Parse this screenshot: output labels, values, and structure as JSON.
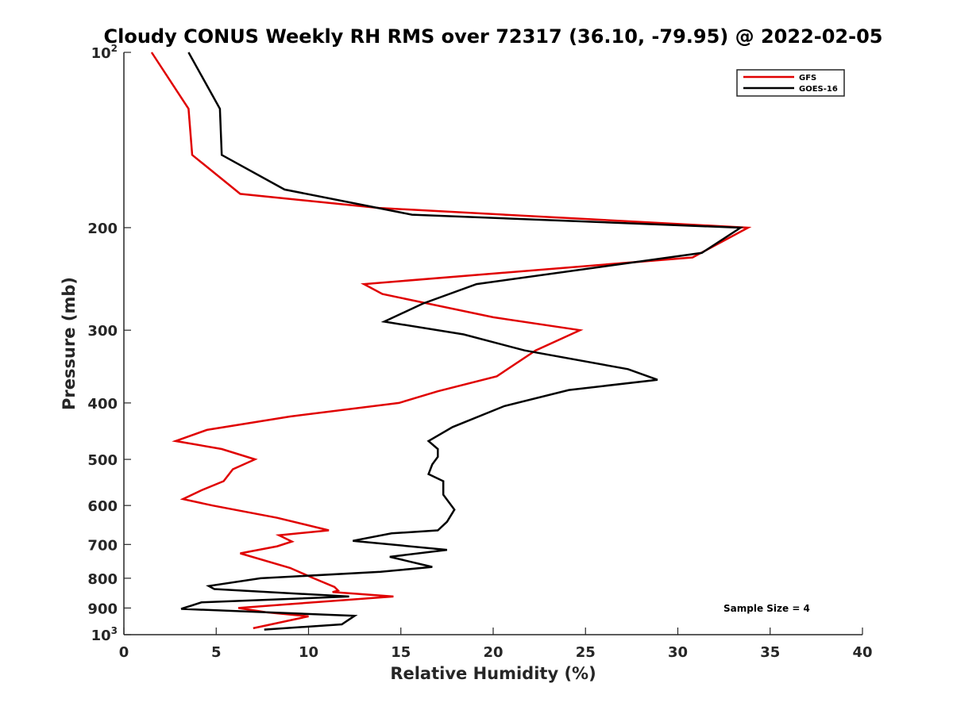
{
  "chart_data": {
    "type": "line",
    "title": "Cloudy CONUS Weekly RH RMS over 72317 (36.10, -79.95) @ 2022-02-05",
    "xlabel": "Relative Humidity (%)",
    "ylabel": "Pressure (mb)",
    "xlim": [
      0,
      40
    ],
    "ylim": [
      100,
      1000
    ],
    "yscale": "log",
    "yreversed": true,
    "grid": false,
    "legend_position": "top-right",
    "x_ticks": [
      "0",
      "5",
      "10",
      "15",
      "20",
      "25",
      "30",
      "35",
      "40"
    ],
    "y_ticks": [
      {
        "value": 100,
        "base": "10",
        "exp": "2"
      },
      {
        "value": 200,
        "label": "200"
      },
      {
        "value": 300,
        "label": "300"
      },
      {
        "value": 400,
        "label": "400"
      },
      {
        "value": 500,
        "label": "500"
      },
      {
        "value": 600,
        "label": "600"
      },
      {
        "value": 700,
        "label": "700"
      },
      {
        "value": 800,
        "label": "800"
      },
      {
        "value": 900,
        "label": "900"
      },
      {
        "value": 1000,
        "base": "10",
        "exp": "3"
      }
    ],
    "annotation": "Sample Size = 4",
    "series": [
      {
        "name": "GFS",
        "color": "#e00000",
        "points": [
          [
            1.5,
            100
          ],
          [
            3.5,
            125
          ],
          [
            3.7,
            150
          ],
          [
            6.3,
            175
          ],
          [
            13.8,
            185
          ],
          [
            33.8,
            200
          ],
          [
            30.8,
            225
          ],
          [
            13.0,
            250
          ],
          [
            14.0,
            260
          ],
          [
            20.0,
            285
          ],
          [
            24.7,
            300
          ],
          [
            22.3,
            325
          ],
          [
            20.2,
            360
          ],
          [
            17.0,
            382
          ],
          [
            14.9,
            400
          ],
          [
            9.0,
            422
          ],
          [
            4.5,
            445
          ],
          [
            2.8,
            465
          ],
          [
            5.3,
            480
          ],
          [
            7.1,
            500
          ],
          [
            5.9,
            520
          ],
          [
            5.4,
            545
          ],
          [
            4.2,
            565
          ],
          [
            3.2,
            585
          ],
          [
            4.8,
            600
          ],
          [
            8.3,
            630
          ],
          [
            11.1,
            662
          ],
          [
            8.4,
            675
          ],
          [
            9.1,
            692
          ],
          [
            8.3,
            705
          ],
          [
            6.3,
            725
          ],
          [
            9.0,
            768
          ],
          [
            10.2,
            798
          ],
          [
            11.4,
            828
          ],
          [
            11.6,
            840
          ],
          [
            11.3,
            845
          ],
          [
            14.6,
            860
          ],
          [
            9.2,
            885
          ],
          [
            6.2,
            900
          ],
          [
            7.7,
            915
          ],
          [
            10.0,
            930
          ],
          [
            7.0,
            975
          ]
        ]
      },
      {
        "name": "GOES-16",
        "color": "#000000",
        "points": [
          [
            3.5,
            100
          ],
          [
            5.2,
            125
          ],
          [
            5.3,
            150
          ],
          [
            8.7,
            172
          ],
          [
            15.6,
            190
          ],
          [
            33.4,
            200
          ],
          [
            31.3,
            221
          ],
          [
            19.1,
            250
          ],
          [
            16.2,
            270
          ],
          [
            14.1,
            290
          ],
          [
            18.4,
            305
          ],
          [
            21.7,
            325
          ],
          [
            27.3,
            350
          ],
          [
            28.9,
            365
          ],
          [
            24.1,
            380
          ],
          [
            20.6,
            405
          ],
          [
            17.8,
            440
          ],
          [
            16.5,
            465
          ],
          [
            17.0,
            480
          ],
          [
            17.0,
            495
          ],
          [
            16.7,
            510
          ],
          [
            16.5,
            530
          ],
          [
            17.3,
            545
          ],
          [
            17.3,
            575
          ],
          [
            17.9,
            610
          ],
          [
            17.5,
            640
          ],
          [
            17.0,
            662
          ],
          [
            14.5,
            670
          ],
          [
            12.4,
            690
          ],
          [
            17.5,
            715
          ],
          [
            14.4,
            735
          ],
          [
            16.7,
            765
          ],
          [
            13.9,
            780
          ],
          [
            7.4,
            800
          ],
          [
            4.6,
            825
          ],
          [
            4.9,
            835
          ],
          [
            12.2,
            860
          ],
          [
            4.2,
            880
          ],
          [
            3.1,
            903
          ],
          [
            12.5,
            928
          ],
          [
            11.8,
            960
          ],
          [
            7.6,
            980
          ]
        ]
      }
    ]
  }
}
